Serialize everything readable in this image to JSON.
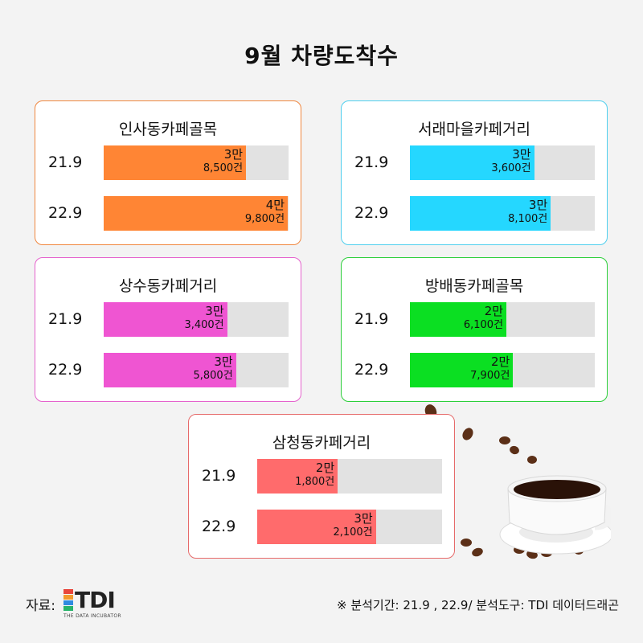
{
  "title": "9월 차량도착수",
  "chart_data": [
    {
      "type": "bar",
      "title": "인사동카페골목",
      "color": "#ff8534",
      "categories": [
        "21.9",
        "22.9"
      ],
      "values": [
        38500,
        49800
      ],
      "labels": [
        [
          "3만",
          "8,500건"
        ],
        [
          "4만",
          "9,800건"
        ]
      ],
      "xlim": [
        0,
        50000
      ]
    },
    {
      "type": "bar",
      "title": "서래마을카페거리",
      "color": "#25d7ff",
      "categories": [
        "21.9",
        "22.9"
      ],
      "values": [
        33600,
        38100
      ],
      "labels": [
        [
          "3만",
          "3,600건"
        ],
        [
          "3만",
          "8,100건"
        ]
      ],
      "xlim": [
        0,
        50000
      ]
    },
    {
      "type": "bar",
      "title": "상수동카페거리",
      "color": "#ef55d2",
      "categories": [
        "21.9",
        "22.9"
      ],
      "values": [
        33400,
        35800
      ],
      "labels": [
        [
          "3만",
          "3,400건"
        ],
        [
          "3만",
          "5,800건"
        ]
      ],
      "xlim": [
        0,
        50000
      ]
    },
    {
      "type": "bar",
      "title": "방배동카페골목",
      "color": "#0bdf22",
      "categories": [
        "21.9",
        "22.9"
      ],
      "values": [
        26100,
        27900
      ],
      "labels": [
        [
          "2만",
          "6,100건"
        ],
        [
          "2만",
          "7,900건"
        ]
      ],
      "xlim": [
        0,
        50000
      ]
    },
    {
      "type": "bar",
      "title": "삼청동카페거리",
      "color": "#ff6b6c",
      "categories": [
        "21.9",
        "22.9"
      ],
      "values": [
        21800,
        32100
      ],
      "labels": [
        [
          "2만",
          "1,800건"
        ],
        [
          "3만",
          "2,100건"
        ]
      ],
      "xlim": [
        0,
        50000
      ]
    }
  ],
  "panel_border_colors": [
    "#f0873f",
    "#4fcfee",
    "#e562cd",
    "#2ccf3a",
    "#e66a6a"
  ],
  "source": {
    "label": "자료:",
    "logo_text": "TDI",
    "logo_sub": "THE DATA INCUBATOR",
    "logo_colors": [
      "#e8463b",
      "#f29a2e",
      "#2f8be0",
      "#28b46a"
    ]
  },
  "note": "※ 분석기간: 21.9 , 22.9/ 분석도구: TDI 데이터드래곤"
}
